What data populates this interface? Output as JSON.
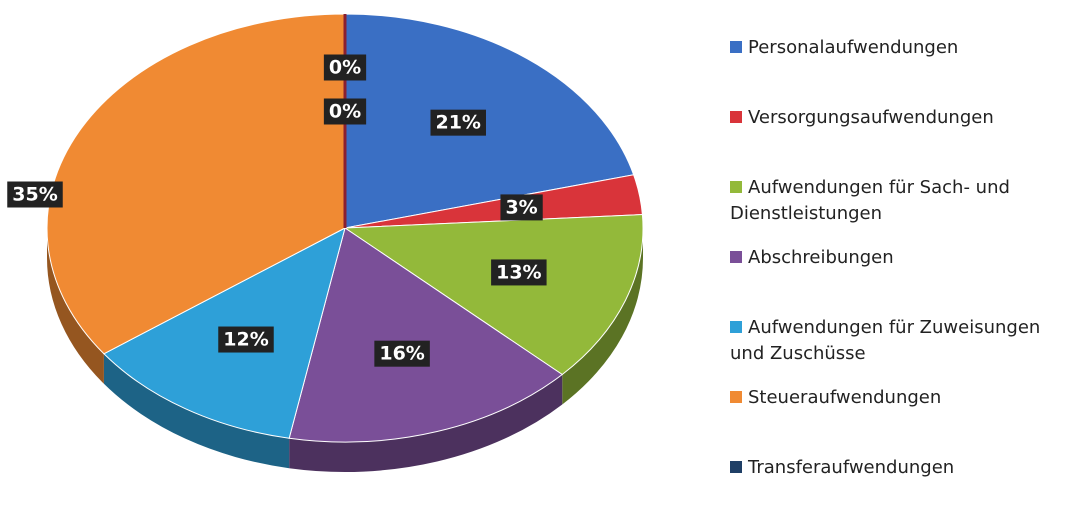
{
  "chart_data": {
    "type": "pie",
    "categories": [
      "Personalaufwendungen",
      "Versorgungsaufwendungen",
      "Aufwendungen für Sach- und Dienstleistungen",
      "Abschreibungen",
      "Aufwendungen für Zuweisungen und Zuschüsse",
      "Steueraufwendungen",
      "Transferaufwendungen",
      null
    ],
    "values": [
      21,
      3,
      13,
      16,
      12,
      35,
      0,
      0
    ],
    "value_labels": [
      "21%",
      "3%",
      "13%",
      "16%",
      "12%",
      "35%",
      "0%",
      "0%"
    ],
    "colors": [
      "#3a6fc4",
      "#d9343a",
      "#93b93a",
      "#7a4f98",
      "#2ea0d8",
      "#f08a33",
      "#1f3f66",
      "#8a2030"
    ]
  }
}
